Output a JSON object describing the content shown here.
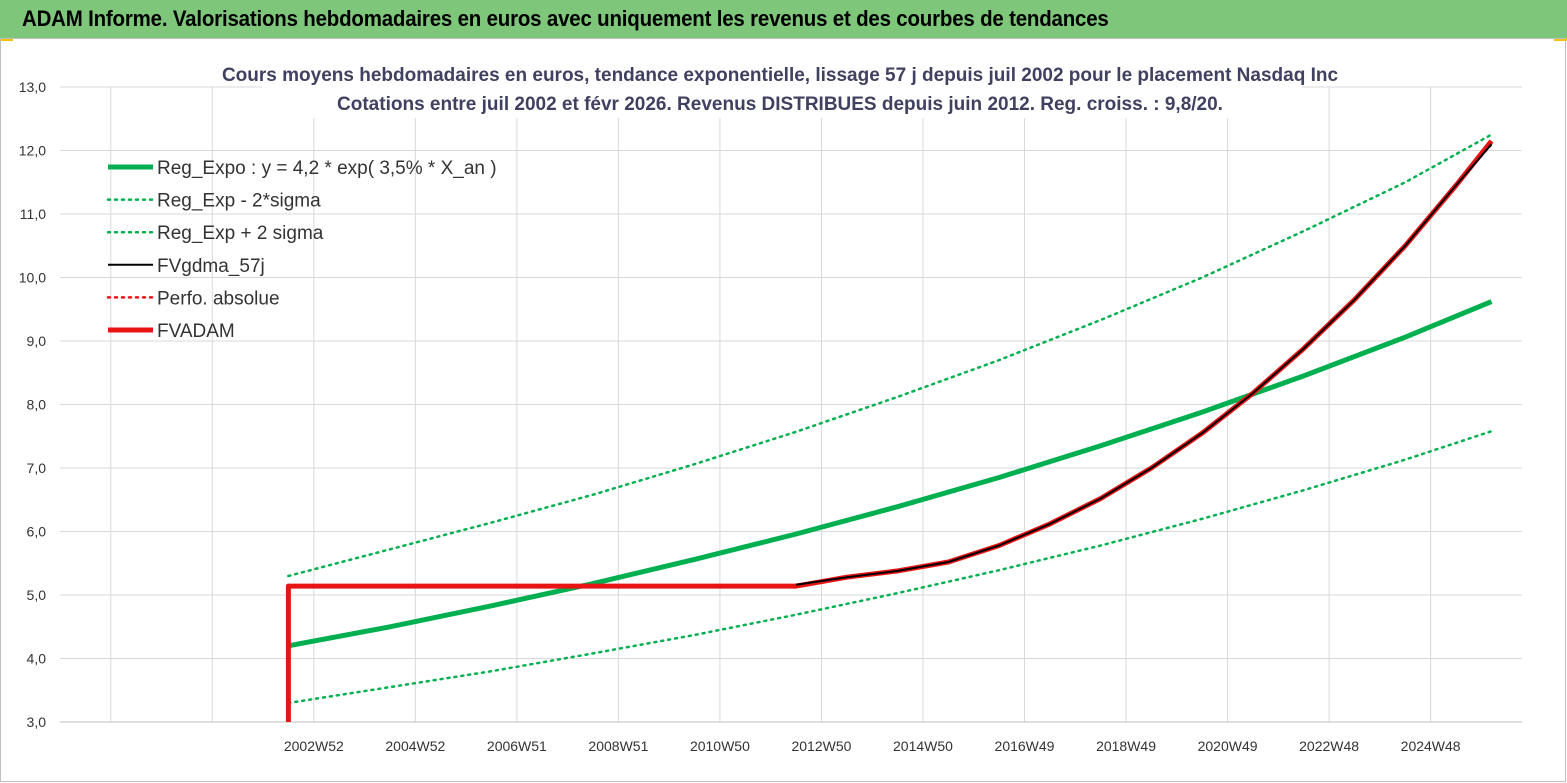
{
  "header": {
    "title": "ADAM Informe. Valorisations hebdomadaires en euros avec uniquement les revenus et des courbes de tendances"
  },
  "colors": {
    "green": "#00b050",
    "red": "#e81414",
    "black": "#000000",
    "banner": "#7dc67a",
    "grid": "#d9d9d9"
  },
  "chart_data": {
    "type": "line",
    "title_line1": "Cours moyens hebdomadaires en euros, tendance exponentielle, lissage 57 j depuis juil 2002 pour le placement Nasdaq Inc",
    "title_line2": "Cotations entre juil 2002 et févr 2026. Revenus DISTRIBUES depuis juin 2012. Reg. croiss. : 9,8/20.",
    "xlabel": "",
    "ylabel": "",
    "ylim": [
      3.0,
      13.0
    ],
    "xlim": [
      1998.0,
      2026.8
    ],
    "y_ticks": [
      "3,0",
      "4,0",
      "5,0",
      "6,0",
      "7,0",
      "8,0",
      "9,0",
      "10,0",
      "11,0",
      "12,0",
      "13,0"
    ],
    "x_ticks": [
      {
        "label": "2002W52",
        "x": 2003.0
      },
      {
        "label": "2004W52",
        "x": 2005.0
      },
      {
        "label": "2006W51",
        "x": 2007.0
      },
      {
        "label": "2008W51",
        "x": 2009.0
      },
      {
        "label": "2010W50",
        "x": 2011.0
      },
      {
        "label": "2012W50",
        "x": 2013.0
      },
      {
        "label": "2014W50",
        "x": 2015.0
      },
      {
        "label": "2016W49",
        "x": 2017.0
      },
      {
        "label": "2018W49",
        "x": 2019.0
      },
      {
        "label": "2020W49",
        "x": 2021.0
      },
      {
        "label": "2022W48",
        "x": 2023.0
      },
      {
        "label": "2024W48",
        "x": 2025.0
      }
    ],
    "grid": true,
    "legend_position": "top-left",
    "series": [
      {
        "name": "Reg_Expo : y = 4,2 * exp( 3,5% *  X_an )",
        "style": "solid-thick",
        "color": "#00b050",
        "x": [
          2002.5,
          2004.5,
          2006.5,
          2008.5,
          2010.5,
          2012.5,
          2014.5,
          2016.5,
          2018.5,
          2020.5,
          2022.5,
          2024.5,
          2026.2
        ],
        "y": [
          4.2,
          4.5,
          4.83,
          5.18,
          5.56,
          5.96,
          6.39,
          6.85,
          7.35,
          7.88,
          8.45,
          9.06,
          9.62
        ]
      },
      {
        "name": "Reg_Exp - 2*sigma",
        "style": "dotted",
        "color": "#00b050",
        "x": [
          2002.5,
          2004.5,
          2006.5,
          2008.5,
          2010.5,
          2012.5,
          2014.5,
          2016.5,
          2018.5,
          2020.5,
          2022.5,
          2024.5,
          2026.2
        ],
        "y": [
          3.3,
          3.55,
          3.8,
          4.08,
          4.37,
          4.69,
          5.03,
          5.39,
          5.78,
          6.2,
          6.65,
          7.13,
          7.58
        ]
      },
      {
        "name": "Reg_Exp + 2 sigma",
        "style": "dotted",
        "color": "#00b050",
        "x": [
          2002.5,
          2004.5,
          2006.5,
          2008.5,
          2010.5,
          2012.5,
          2014.5,
          2016.5,
          2018.5,
          2020.5,
          2022.5,
          2024.5,
          2026.2
        ],
        "y": [
          5.3,
          5.72,
          6.14,
          6.58,
          7.06,
          7.57,
          8.12,
          8.7,
          9.33,
          10.0,
          10.73,
          11.5,
          12.25
        ]
      },
      {
        "name": "FVgdma_57j",
        "style": "solid",
        "color": "#000000",
        "x": [
          2012.5,
          2013.5,
          2014.5,
          2015.5,
          2016.5,
          2017.5,
          2018.5,
          2019.5,
          2020.5,
          2021.5,
          2022.5,
          2023.5,
          2024.5,
          2025.5,
          2026.2
        ],
        "y": [
          5.16,
          5.28,
          5.38,
          5.52,
          5.78,
          6.12,
          6.52,
          7.0,
          7.55,
          8.18,
          8.88,
          9.65,
          10.5,
          11.45,
          12.1
        ]
      },
      {
        "name": "Perfo. absolue",
        "style": "dotted",
        "color": "#e81414",
        "x": [
          2012.5,
          2013.5,
          2014.5,
          2015.5,
          2016.5,
          2017.5,
          2018.5,
          2019.5,
          2020.5,
          2021.5,
          2022.5,
          2023.5,
          2024.5,
          2025.5,
          2026.2
        ],
        "y": [
          5.16,
          5.28,
          5.38,
          5.52,
          5.78,
          6.12,
          6.52,
          7.0,
          7.55,
          8.18,
          8.88,
          9.65,
          10.5,
          11.45,
          12.1
        ]
      },
      {
        "name": "FVADAM",
        "style": "solid-thick",
        "color": "#e81414",
        "x": [
          2002.5,
          2002.5,
          2012.5,
          2013.5,
          2014.5,
          2015.5,
          2016.5,
          2017.5,
          2018.5,
          2019.5,
          2020.5,
          2021.5,
          2022.5,
          2023.5,
          2024.5,
          2025.5,
          2026.2
        ],
        "y": [
          3.0,
          5.14,
          5.14,
          5.28,
          5.38,
          5.52,
          5.78,
          6.12,
          6.52,
          7.0,
          7.55,
          8.18,
          8.88,
          9.65,
          10.5,
          11.45,
          12.15
        ]
      }
    ]
  }
}
